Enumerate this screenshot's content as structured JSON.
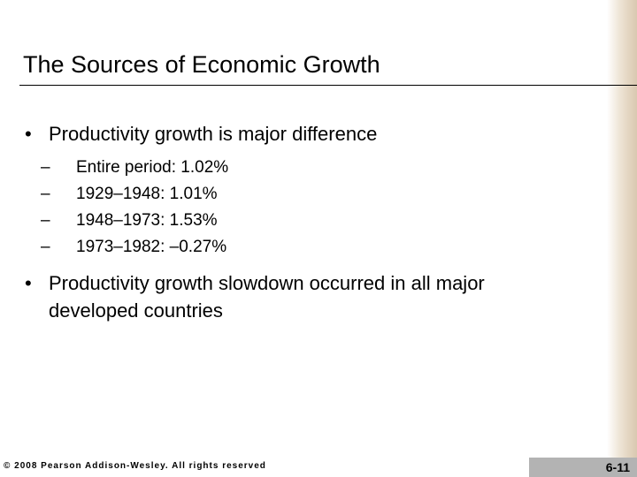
{
  "slide": {
    "title": "The Sources of Economic Growth",
    "bullets": [
      {
        "text": "Productivity growth is major difference",
        "sub_items": [
          "Entire period: 1.02%",
          "1929–1948: 1.01%",
          "1948–1973: 1.53%",
          "1973–1982: –0.27%"
        ]
      },
      {
        "text": "Productivity growth slowdown occurred in all major developed countries",
        "sub_items": []
      }
    ],
    "footer": "© 2008 Pearson Addison-Wesley. All rights reserved",
    "page_number": "6-11"
  }
}
